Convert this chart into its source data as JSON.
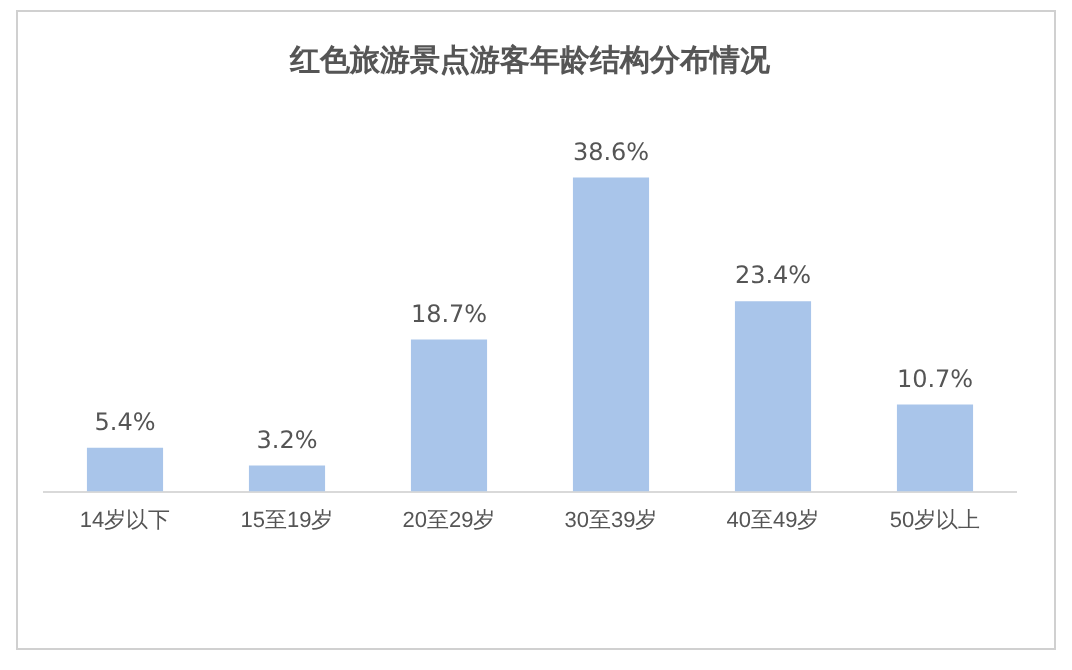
{
  "chart_data": {
    "type": "bar",
    "title": "红色旅游景点游客年龄结构分布情况",
    "categories": [
      "14岁以下",
      "15至19岁",
      "20至29岁",
      "30至39岁",
      "40至49岁",
      "50岁以上"
    ],
    "values": [
      5.4,
      3.2,
      18.7,
      38.6,
      23.4,
      10.7
    ],
    "value_labels": [
      "5.4%",
      "3.2%",
      "18.7%",
      "38.6%",
      "23.4%",
      "10.7%"
    ],
    "color": "#a9c5ea",
    "grid": false,
    "legend": false
  }
}
